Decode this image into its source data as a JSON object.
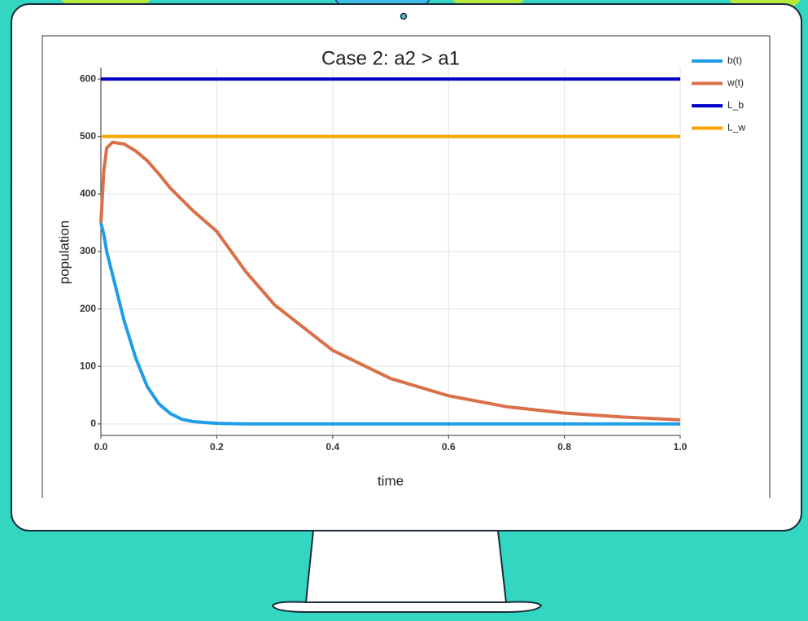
{
  "chart_data": {
    "type": "line",
    "title": "Case 2: a2 > a1",
    "xlabel": "time",
    "ylabel": "population",
    "x": [
      0,
      0.005,
      0.01,
      0.02,
      0.04,
      0.06,
      0.08,
      0.1,
      0.12,
      0.14,
      0.16,
      0.2,
      0.25,
      0.3,
      0.4,
      0.5,
      0.6,
      0.7,
      0.8,
      0.9,
      1.0
    ],
    "series": [
      {
        "name": "b(t)",
        "color": "#1f9de6",
        "values": [
          350,
          330,
          300,
          260,
          180,
          115,
          65,
          35,
          18,
          8,
          4,
          1,
          0,
          0,
          0,
          0,
          0,
          0,
          0,
          0,
          0
        ]
      },
      {
        "name": "w(t)",
        "color": "#d9704a",
        "values": [
          350,
          440,
          480,
          490,
          487,
          475,
          458,
          435,
          410,
          390,
          370,
          335,
          265,
          207,
          128,
          79,
          49,
          30,
          19,
          12,
          7
        ]
      },
      {
        "name": "L_b",
        "color": "#0000c8",
        "values": [
          600,
          600,
          600,
          600,
          600,
          600,
          600,
          600,
          600,
          600,
          600,
          600,
          600,
          600,
          600,
          600,
          600,
          600,
          600,
          600,
          600
        ]
      },
      {
        "name": "L_w",
        "color": "#f7a700",
        "values": [
          500,
          500,
          500,
          500,
          500,
          500,
          500,
          500,
          500,
          500,
          500,
          500,
          500,
          500,
          500,
          500,
          500,
          500,
          500,
          500,
          500
        ]
      }
    ],
    "xlim": [
      0,
      1.0
    ],
    "xticks": [
      {
        "value": 0,
        "label": "0.0"
      },
      0.2,
      0.4,
      0.6,
      0.8,
      {
        "value": 1.0,
        "label": "1.0"
      }
    ],
    "ylim": [
      -20,
      620
    ],
    "yticks": [
      0,
      100,
      200,
      300,
      400,
      500,
      600
    ],
    "grid": true,
    "legend": "upper right"
  }
}
